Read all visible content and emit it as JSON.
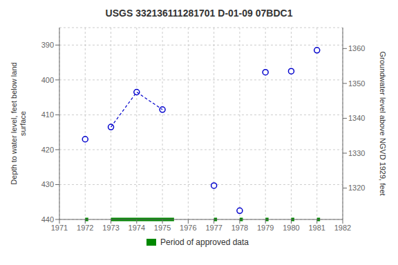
{
  "chart_data": {
    "type": "scatter",
    "title": "USGS 332136111281701 D-01-09 07BDC1",
    "y_label": "Depth to water level, feet below land\n surface",
    "y2_label": "Groundwater level above NGVD 1929, feet",
    "xlim": [
      1971,
      1982
    ],
    "xticks": [
      1971,
      1972,
      1973,
      1974,
      1975,
      1976,
      1977,
      1978,
      1979,
      1980,
      1981,
      1982
    ],
    "ylim": [
      440,
      385
    ],
    "yticks": [
      390,
      400,
      410,
      420,
      430,
      440
    ],
    "y2lim": [
      1311,
      1366
    ],
    "y2ticks": [
      1320,
      1330,
      1340,
      1350,
      1360
    ],
    "grid": true,
    "legend": "bottom",
    "series": [
      {
        "type": "scatter",
        "marker": "circle",
        "color": "#0000cc",
        "x": [
          1972.0,
          1973.0,
          1974.0,
          1975.0,
          1977.0,
          1978.0,
          1979.0,
          1980.0,
          1981.0
        ],
        "values": [
          417.0,
          413.5,
          403.5,
          408.5,
          430.3,
          437.5,
          397.8,
          397.5,
          391.5
        ]
      },
      {
        "type": "line",
        "line_style": "dashed",
        "color": "#0000cc",
        "x": [
          1973.0,
          1974.0,
          1975.0
        ],
        "values": [
          413.5,
          403.5,
          408.5
        ]
      },
      {
        "type": "range",
        "name": "Period of approved data",
        "color": "#008800",
        "y": 440.0,
        "x_start": [
          1972.0,
          1973.0,
          1977.0,
          1978.0,
          1979.0,
          1980.0,
          1981.0
        ],
        "x_end": [
          1972.12,
          1975.45,
          1977.12,
          1978.12,
          1979.12,
          1980.12,
          1981.12
        ]
      }
    ]
  }
}
